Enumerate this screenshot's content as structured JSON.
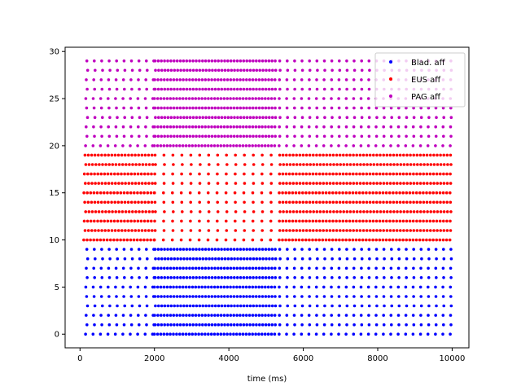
{
  "chart_data": {
    "type": "scatter",
    "title": "",
    "xlabel": "time (ms)",
    "ylabel": "",
    "xlim": [
      -400,
      10450
    ],
    "ylim": [
      -1.45,
      30.45
    ],
    "x_ticks": [
      0,
      2000,
      4000,
      6000,
      8000,
      10000
    ],
    "y_ticks": [
      0,
      5,
      10,
      15,
      20,
      25,
      30
    ],
    "grid": false,
    "legend_position": "top-right",
    "marker_size": 3,
    "series": [
      {
        "name": "Blad. aff",
        "color": "#0000ff",
        "unit_ids": [
          0,
          1,
          2,
          3,
          4,
          5,
          6,
          7,
          8,
          9
        ],
        "segments": [
          {
            "start": 150,
            "end": 2000,
            "interval": 200
          },
          {
            "start": 2000,
            "end": 5300,
            "interval": 85
          },
          {
            "start": 5350,
            "end": 10000,
            "interval": 200
          }
        ]
      },
      {
        "name": "EUS aff",
        "color": "#ff0000",
        "unit_ids": [
          10,
          11,
          12,
          13,
          14,
          15,
          16,
          17,
          18,
          19
        ],
        "segments": [
          {
            "start": 100,
            "end": 2000,
            "interval": 90
          },
          {
            "start": 2000,
            "end": 5300,
            "interval": 240
          },
          {
            "start": 5350,
            "end": 10000,
            "interval": 90
          }
        ]
      },
      {
        "name": "PAG aff",
        "color": "#bf00bf",
        "unit_ids": [
          20,
          21,
          22,
          23,
          24,
          25,
          26,
          27,
          28,
          29
        ],
        "segments": [
          {
            "start": 150,
            "end": 2000,
            "interval": 200
          },
          {
            "start": 2000,
            "end": 5300,
            "interval": 85
          },
          {
            "start": 5350,
            "end": 10000,
            "interval": 200
          }
        ]
      }
    ]
  }
}
